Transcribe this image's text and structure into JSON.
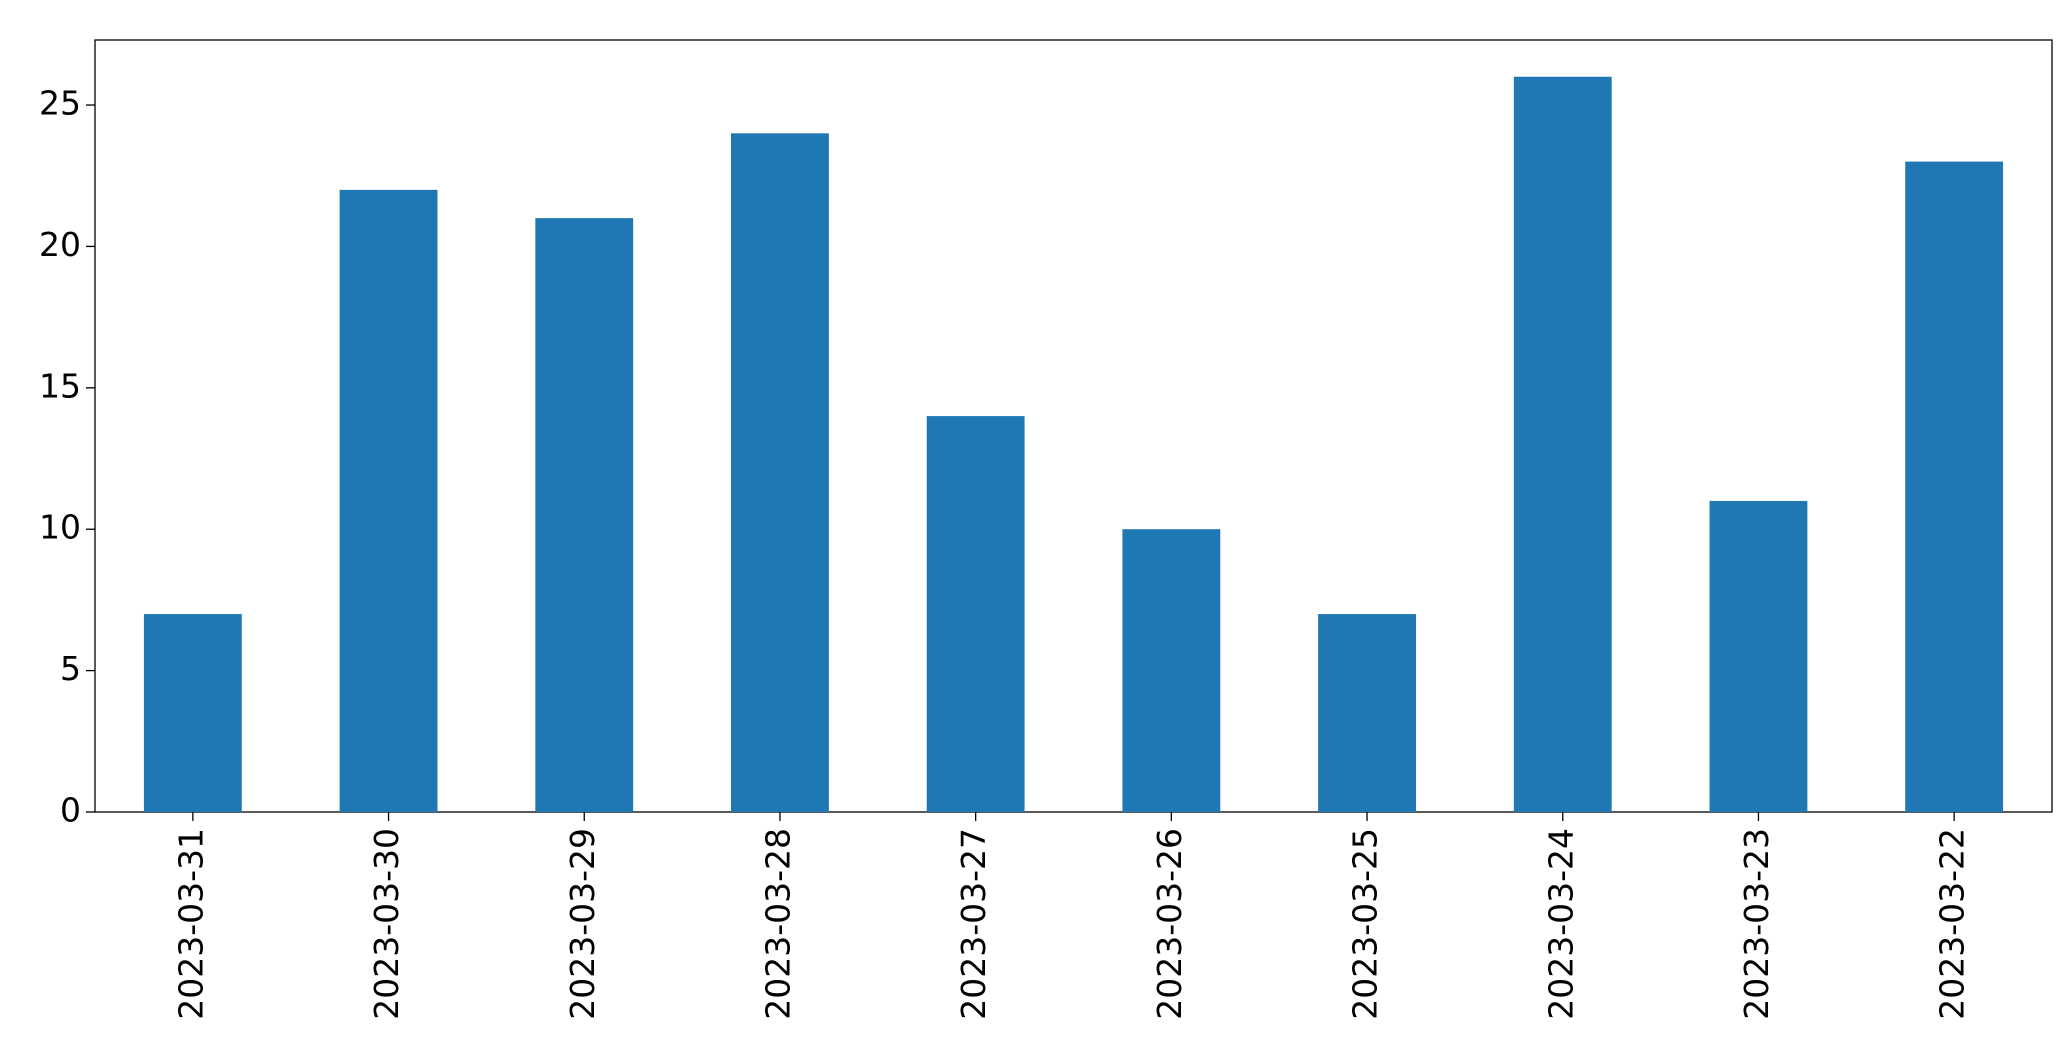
{
  "chart_data": {
    "type": "bar",
    "categories": [
      "2023-03-31",
      "2023-03-30",
      "2023-03-29",
      "2023-03-28",
      "2023-03-27",
      "2023-03-26",
      "2023-03-25",
      "2023-03-24",
      "2023-03-23",
      "2023-03-22"
    ],
    "values": [
      7,
      22,
      21,
      24,
      14,
      10,
      7,
      26,
      11,
      23
    ],
    "color": "#1f77b4",
    "ylim": [
      0,
      27.3
    ],
    "yticks": [
      0,
      5,
      10,
      15,
      20,
      25
    ],
    "grid": false
  }
}
